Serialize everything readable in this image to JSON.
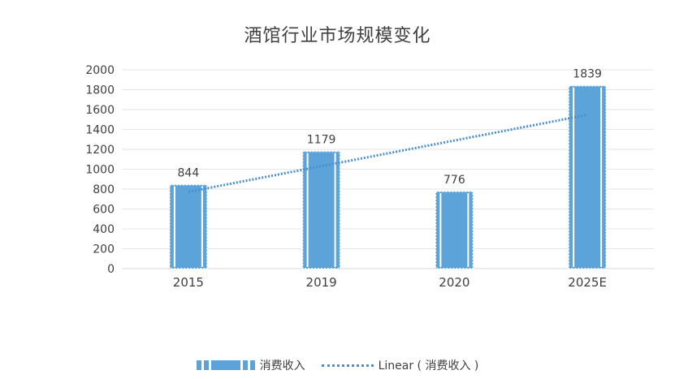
{
  "chart_data": {
    "type": "bar",
    "title": "酒馆行业市场规模变化",
    "categories": [
      "2015",
      "2019",
      "2020",
      "2025E"
    ],
    "series": [
      {
        "name": "消费收入",
        "values": [
          844,
          1179,
          776,
          1839
        ]
      }
    ],
    "trendline": {
      "type": "linear",
      "name": "Linear ( 消费收入 )"
    },
    "yticks": [
      "0",
      "200",
      "400",
      "600",
      "800",
      "1000",
      "1200",
      "1400",
      "1600",
      "1800",
      "2000"
    ],
    "ylim": [
      0,
      2000
    ],
    "grid": true,
    "legend_position": "bottom",
    "colors": {
      "bar": "#5ba3d9",
      "trend": "#4a8fd0",
      "grid": "#e6e6e6",
      "text": "#404040"
    }
  }
}
